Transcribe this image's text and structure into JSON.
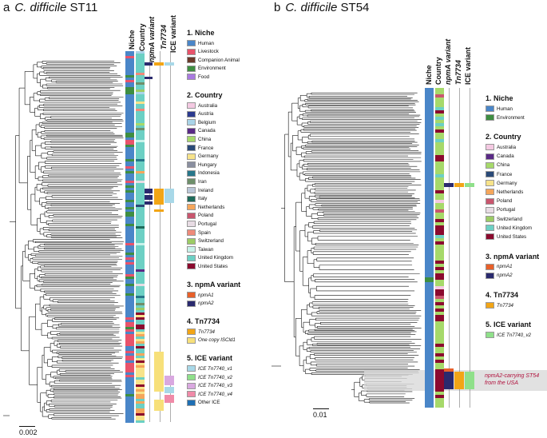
{
  "panel_a": {
    "letter": "a",
    "species": "C. difficile",
    "strain": "ST11",
    "columns": [
      "Niche",
      "Country",
      "npmA variant",
      "Tn7734",
      "ICE variant"
    ],
    "scale_label": "0.002",
    "legend": [
      {
        "title": "1. Niche",
        "items": [
          {
            "label": "Human",
            "color": "#4a86c8"
          },
          {
            "label": "Livestock",
            "color": "#e8536b"
          },
          {
            "label": "Companion Animal",
            "color": "#6b3a2a"
          },
          {
            "label": "Environment",
            "color": "#3e8e41"
          },
          {
            "label": "Food",
            "color": "#a97be0"
          }
        ]
      },
      {
        "title": "2. Country",
        "items": [
          {
            "label": "Australia",
            "color": "#f4c9e2"
          },
          {
            "label": "Austria",
            "color": "#2b3a8f"
          },
          {
            "label": "Belgium",
            "color": "#a9d4e8"
          },
          {
            "label": "Canada",
            "color": "#5a2a86"
          },
          {
            "label": "China",
            "color": "#a6d96a"
          },
          {
            "label": "France",
            "color": "#2a4a78"
          },
          {
            "label": "Germany",
            "color": "#f7e38a"
          },
          {
            "label": "Hungary",
            "color": "#8a8fa0"
          },
          {
            "label": "Indonesia",
            "color": "#27768a"
          },
          {
            "label": "Iran",
            "color": "#6e8f6a"
          },
          {
            "label": "Ireland",
            "color": "#b9c6d8"
          },
          {
            "label": "Italy",
            "color": "#1e6b5a"
          },
          {
            "label": "Netherlands",
            "color": "#f5a65b"
          },
          {
            "label": "Poland",
            "color": "#c9566e"
          },
          {
            "label": "Portugal",
            "color": "#e8dce4"
          },
          {
            "label": "Spain",
            "color": "#ef8a7a"
          },
          {
            "label": "Switzerland",
            "color": "#9ccc65"
          },
          {
            "label": "Taiwan",
            "color": "#c8f2ea"
          },
          {
            "label": "United Kingdom",
            "color": "#6cd0c4"
          },
          {
            "label": "United States",
            "color": "#8b0a2e"
          }
        ]
      },
      {
        "title": "3. npmA variant",
        "items": [
          {
            "label": "npmA1",
            "color": "#e8602a"
          },
          {
            "label": "npmA2",
            "color": "#2a2a6e"
          }
        ]
      },
      {
        "title": "4. Tn7734",
        "items": [
          {
            "label": "Tn7734",
            "color": "#f2a516"
          },
          {
            "label": "One copy ISCld1",
            "color": "#f7e07a"
          }
        ]
      },
      {
        "title": "5. ICE variant",
        "items": [
          {
            "label": "ICE Tn7740_v1",
            "color": "#a8d8e8"
          },
          {
            "label": "ICE Tn7740_v2",
            "color": "#8fe08a"
          },
          {
            "label": "ICE Tn7740_v3",
            "color": "#d9a8e0"
          },
          {
            "label": "ICE Tn7740_v4",
            "color": "#f08aa8"
          },
          {
            "label": "Other ICE",
            "color": "#1e6fb4"
          }
        ]
      }
    ]
  },
  "panel_b": {
    "letter": "b",
    "species": "C. difficile",
    "strain": "ST54",
    "columns": [
      "Niche",
      "Country",
      "npmA variant",
      "Tn7734",
      "ICE variant"
    ],
    "scale_label": "0.01",
    "annotation": [
      "npmA2-carrying ST54",
      "from the USA"
    ],
    "legend": [
      {
        "title": "1. Niche",
        "items": [
          {
            "label": "Human",
            "color": "#4a86c8"
          },
          {
            "label": "Environment",
            "color": "#3e8e41"
          }
        ]
      },
      {
        "title": "2. Country",
        "items": [
          {
            "label": "Australia",
            "color": "#f4c9e2"
          },
          {
            "label": "Canada",
            "color": "#5a2a86"
          },
          {
            "label": "China",
            "color": "#a6d96a"
          },
          {
            "label": "France",
            "color": "#2a4a78"
          },
          {
            "label": "Germany",
            "color": "#f7e38a"
          },
          {
            "label": "Netherlands",
            "color": "#f5a65b"
          },
          {
            "label": "Poland",
            "color": "#c9566e"
          },
          {
            "label": "Portugal",
            "color": "#e8dce4"
          },
          {
            "label": "Switzerland",
            "color": "#9ccc65"
          },
          {
            "label": "United Kingdom",
            "color": "#6cd0c4"
          },
          {
            "label": "United States",
            "color": "#8b0a2e"
          }
        ]
      },
      {
        "title": "3. npmA variant",
        "items": [
          {
            "label": "npmA1",
            "color": "#e8602a"
          },
          {
            "label": "npmA2",
            "color": "#2a2a6e"
          }
        ]
      },
      {
        "title": "4. Tn7734",
        "items": [
          {
            "label": "Tn7734",
            "color": "#f2a516"
          }
        ]
      },
      {
        "title": "5. ICE variant",
        "items": [
          {
            "label": "ICE Tn7740_v2",
            "color": "#8fe08a"
          }
        ]
      }
    ]
  }
}
